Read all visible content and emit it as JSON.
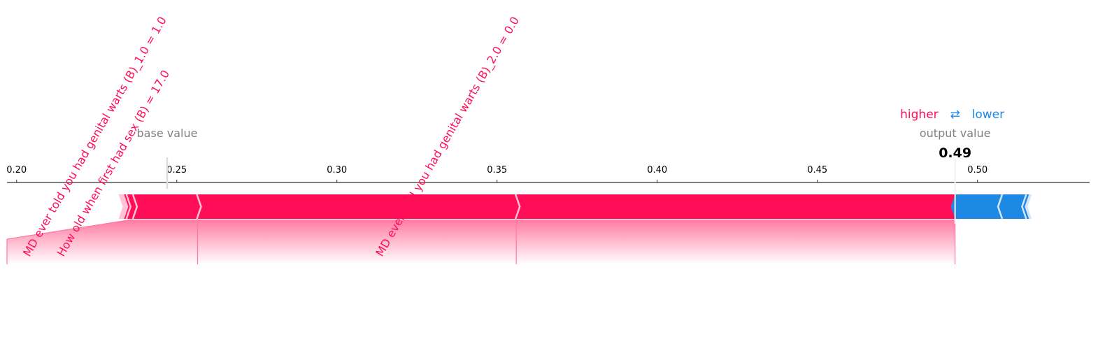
{
  "chart_data": {
    "type": "force",
    "xlim": [
      0.197,
      0.535
    ],
    "ticks": [
      0.2,
      0.25,
      0.3,
      0.35,
      0.4,
      0.45,
      0.5
    ],
    "tick_labels": [
      "0.20",
      "0.25",
      "0.30",
      "0.35",
      "0.40",
      "0.45",
      "0.50"
    ],
    "base_value": 0.247,
    "base_value_label": "base value",
    "output_value": 0.493,
    "output_value_text": "0.49",
    "output_value_label": "output value",
    "legend": {
      "higher": "higher",
      "arrows": "⇄",
      "lower": "lower"
    },
    "colors": {
      "positive": "#ff0d57",
      "negative": "#1e88e5",
      "positive_light": "#ffc3d5",
      "negative_light": "#d1e6fa"
    },
    "positive_segments": [
      {
        "start": 0.2325,
        "end": 0.2335
      },
      {
        "start": 0.2335,
        "end": 0.2345
      },
      {
        "start": 0.2345,
        "end": 0.2365
      },
      {
        "start": 0.2365,
        "end": 0.2565,
        "label": "MD ever told you had genital warts (B)_1.0 = 1.0"
      },
      {
        "start": 0.2565,
        "end": 0.356,
        "label": "How old when first had sex (B) = 17.0"
      },
      {
        "start": 0.356,
        "end": 0.493,
        "label": "MD ever told you had genital warts (B)_2.0 = 0.0"
      }
    ],
    "negative_segments": [
      {
        "start": 0.493,
        "end": 0.5075
      },
      {
        "start": 0.5075,
        "end": 0.515
      },
      {
        "start": 0.515,
        "end": 0.5165
      }
    ]
  }
}
